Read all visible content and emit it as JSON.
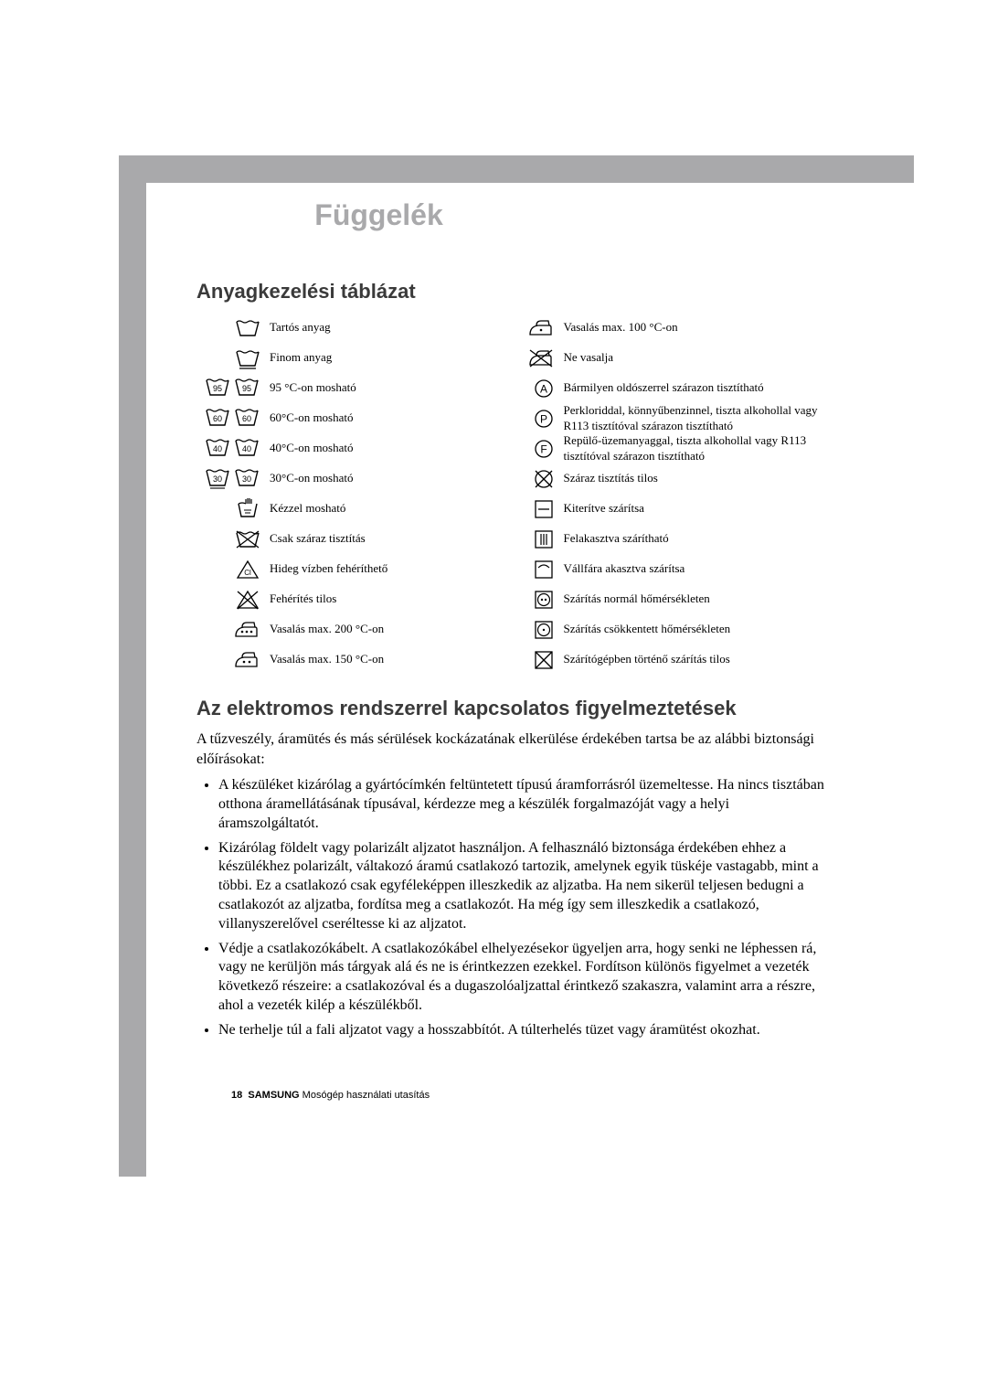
{
  "colors": {
    "grey_bar": "#a9a9ab",
    "heading_grey": "#a9a9ab",
    "text": "#000000",
    "section_heading": "#3a3a3a",
    "background": "#ffffff"
  },
  "typography": {
    "body_family": "Georgia, serif",
    "heading_family": "Arial, sans-serif",
    "tab_fontsize": 32,
    "section_fontsize": 22,
    "label_fontsize": 13,
    "body_fontsize": 16,
    "footer_fontsize": 11
  },
  "tab_title": "Függelék",
  "section1_title": "Anyagkezelési táblázat",
  "left_col": [
    {
      "icon": "tub",
      "label": "Tartós anyag"
    },
    {
      "icon": "tub-line",
      "label": "Finom anyag"
    },
    {
      "icon": "tub-95-double",
      "label": "95 °C-on mosható"
    },
    {
      "icon": "tub-60-double",
      "label": "60°C-on mosható"
    },
    {
      "icon": "tub-40-double",
      "label": "40°C-on mosható"
    },
    {
      "icon": "tub-30-double",
      "label": "30°C-on mosható"
    },
    {
      "icon": "hand-wash",
      "label": "Kézzel mosható"
    },
    {
      "icon": "tub-cross",
      "label": "Csak száraz tisztítás"
    },
    {
      "icon": "triangle-cl",
      "label": "Hideg vízben fehéríthető"
    },
    {
      "icon": "triangle-cross",
      "label": "Fehérítés tilos"
    },
    {
      "icon": "iron-3",
      "label": "Vasalás max. 200 °C-on"
    },
    {
      "icon": "iron-2",
      "label": "Vasalás max. 150 °C-on"
    }
  ],
  "right_col": [
    {
      "icon": "iron-1",
      "label": "Vasalás max. 100 °C-on"
    },
    {
      "icon": "iron-cross",
      "label": "Ne vasalja"
    },
    {
      "icon": "circle-A",
      "label": "Bármilyen oldószerrel szárazon tisztítható"
    },
    {
      "icon": "circle-P",
      "label": "Perkloriddal, könnyűbenzinnel, tiszta alkohollal vagy R113 tisztítóval szárazon tisztítható"
    },
    {
      "icon": "circle-F",
      "label": "Repülő-üzemanyaggal, tiszta alkohollal vagy R113 tisztítóval szárazon tisztítható"
    },
    {
      "icon": "circle-cross",
      "label": "Száraz tisztítás tilos"
    },
    {
      "icon": "sq-hbar",
      "label": "Kiterítve szárítsa"
    },
    {
      "icon": "sq-vbars",
      "label": "Felakasztva szárítható"
    },
    {
      "icon": "sq-hanger",
      "label": "Vállfára akasztva szárítsa"
    },
    {
      "icon": "sq-circle-2",
      "label": "Szárítás normál hőmérsékleten"
    },
    {
      "icon": "sq-circle-1",
      "label": "Szárítás csökkentett hőmérsékleten"
    },
    {
      "icon": "sq-cross",
      "label": "Szárítógépben történő szárítás tilos"
    }
  ],
  "section2_title": "Az elektromos rendszerrel kapcsolatos figyelmeztetések",
  "intro": "A tűzveszély, áramütés és más sérülések kockázatának elkerülése érdekében tartsa be az alábbi biztonsági előírásokat:",
  "warnings": [
    "A készüléket kizárólag a gyártócímkén feltüntetett típusú áramforrásról üzemeltesse. Ha nincs tisztában otthona áramellátásának típusával, kérdezze meg a készülék forgalmazóját vagy a helyi áramszolgáltatót.",
    "Kizárólag földelt vagy polarizált aljzatot használjon. A felhasználó biztonsága érdekében ehhez a készülékhez polarizált, váltakozó áramú csatlakozó tartozik, amelynek egyik tüskéje vastagabb, mint a többi. Ez a csatlakozó csak egyféleképpen illeszkedik az aljzatba. Ha nem sikerül teljesen bedugni a csatlakozót az aljzatba, fordítsa meg a csatlakozót. Ha még így sem illeszkedik a csatlakozó, villanyszerelővel cseréltesse ki az aljzatot.",
    "Védje a csatlakozókábelt. A csatlakozókábel elhelyezésekor ügyeljen arra, hogy senki ne léphessen rá, vagy ne kerüljön más tárgyak alá és ne is érintkezzen ezekkel. Fordítson különös figyelmet a vezeték következő részeire: a csatlakozóval és a dugaszolóaljzattal érintkező szakaszra, valamint arra a részre, ahol a vezeték kilép a készülékből.",
    "Ne terhelje túl a fali aljzatot vagy a hosszabbítót. A túlterhelés tüzet vagy áramütést okozhat."
  ],
  "footer": {
    "page": "18",
    "brand": "SAMSUNG",
    "text": "Mosógép használati utasítás"
  }
}
